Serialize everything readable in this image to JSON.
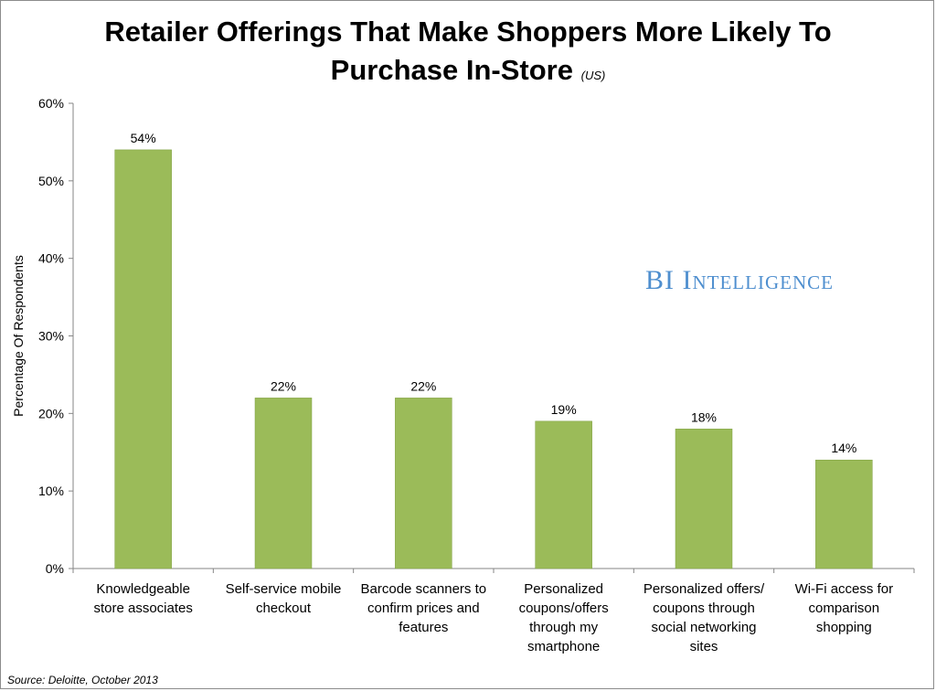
{
  "title": {
    "line1": "Retailer Offerings That Make Shoppers More Likely To",
    "line2": "Purchase In-Store",
    "region": "(US)"
  },
  "watermark": "BI Intelligence",
  "source": "Source: Deloitte, October 2013",
  "colors": {
    "bar": "#9bbb59",
    "bar_edge": "#7f9f42",
    "axis": "#868686",
    "brand": "#4f8fcf"
  },
  "chart_data": {
    "type": "bar",
    "title": "Retailer Offerings That Make Shoppers More Likely To Purchase In-Store (US)",
    "xlabel": "",
    "ylabel": "Percentage Of Respondents",
    "ylim": [
      0,
      60
    ],
    "yticks": [
      "0%",
      "10%",
      "20%",
      "30%",
      "40%",
      "50%",
      "60%"
    ],
    "categories": [
      [
        "Knowledgeable",
        "store associates"
      ],
      [
        "Self-service mobile",
        "checkout"
      ],
      [
        "Barcode scanners to",
        "confirm prices and",
        "features"
      ],
      [
        "Personalized",
        "coupons/offers",
        "through my",
        "smartphone"
      ],
      [
        "Personalized offers/",
        "coupons through",
        "social networking",
        "sites"
      ],
      [
        "Wi-Fi access for",
        "comparison",
        "shopping"
      ]
    ],
    "values": [
      54,
      22,
      22,
      19,
      18,
      14
    ],
    "data_labels": [
      "54%",
      "22%",
      "22%",
      "19%",
      "18%",
      "14%"
    ],
    "grid": false,
    "legend": "none"
  }
}
